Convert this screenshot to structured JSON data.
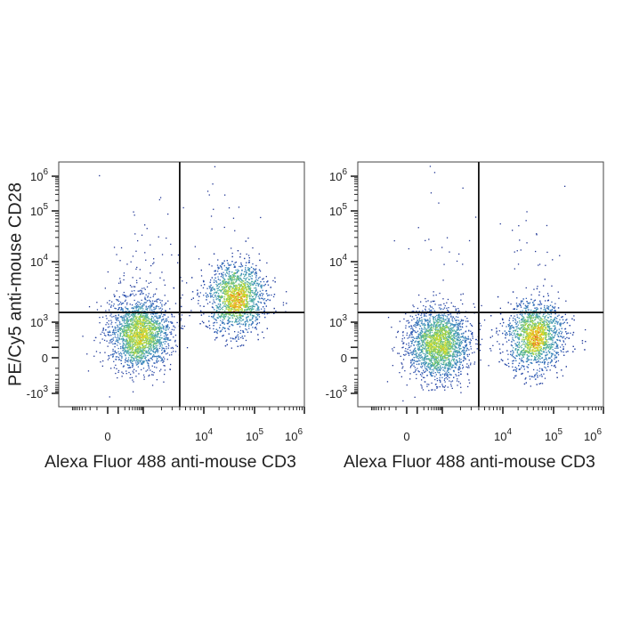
{
  "chart_data": [
    {
      "type": "scatter",
      "subtype": "flow-cytometry-density-dot-plot",
      "xlabel": "Alexa Fluor 488 anti-mouse CD3",
      "ylabel": "PE/Cy5 anti-mouse CD28",
      "x_scale": "biexponential",
      "y_scale": "biexponential",
      "xlim": [
        -1000,
        1000000
      ],
      "ylim": [
        -2000,
        1500000
      ],
      "x_ticks": [
        {
          "value": 0,
          "label": "0"
        },
        {
          "value": 10000,
          "label": "10",
          "exp": "4"
        },
        {
          "value": 100000,
          "label": "10",
          "exp": "5"
        },
        {
          "value": 1000000,
          "label": "10",
          "exp": "6"
        }
      ],
      "y_ticks": [
        {
          "value": 1000000,
          "label": "10",
          "exp": "6"
        },
        {
          "value": 100000,
          "label": "10",
          "exp": "5"
        },
        {
          "value": 10000,
          "label": "10",
          "exp": "4"
        },
        {
          "value": 1000,
          "label": "10",
          "exp": "3"
        },
        {
          "value": 0,
          "label": "0"
        },
        {
          "value": -1000,
          "label": "-10",
          "exp": "3"
        }
      ],
      "quadrant_gate": {
        "x": 4000,
        "y": 1450
      },
      "populations": [
        {
          "x": 700,
          "y": 400,
          "events": 2200
        },
        {
          "x": 38000,
          "y": 2500,
          "events": 2300
        }
      ],
      "sparse_events": {
        "upper_left": 60,
        "upper_right": 30
      }
    },
    {
      "type": "scatter",
      "subtype": "flow-cytometry-density-dot-plot",
      "xlabel": "Alexa Fluor 488 anti-mouse CD3",
      "ylabel": "",
      "x_scale": "biexponential",
      "y_scale": "biexponential",
      "xlim": [
        -1000,
        1000000
      ],
      "ylim": [
        -2000,
        1500000
      ],
      "x_ticks": [
        {
          "value": 0,
          "label": "0"
        },
        {
          "value": 10000,
          "label": "10",
          "exp": "4"
        },
        {
          "value": 100000,
          "label": "10",
          "exp": "5"
        },
        {
          "value": 1000000,
          "label": "10",
          "exp": "6"
        }
      ],
      "y_ticks": [
        {
          "value": 1000000,
          "label": "10",
          "exp": "6"
        },
        {
          "value": 100000,
          "label": "10",
          "exp": "5"
        },
        {
          "value": 10000,
          "label": "10",
          "exp": "4"
        },
        {
          "value": 1000,
          "label": "10",
          "exp": "3"
        },
        {
          "value": 0,
          "label": "0"
        },
        {
          "value": -1000,
          "label": "-10",
          "exp": "3"
        }
      ],
      "quadrant_gate": {
        "x": 4000,
        "y": 1450
      },
      "populations": [
        {
          "x": 700,
          "y": 150,
          "events": 2200
        },
        {
          "x": 38000,
          "y": 300,
          "events": 2300
        }
      ],
      "sparse_events": {
        "upper_left": 25,
        "upper_right": 30
      }
    }
  ],
  "colors": {
    "density_low": "#1c2d8c",
    "density_mid": "#7cc850",
    "density_high": "#e02010",
    "axis": "#222222",
    "gate": "#111111"
  }
}
